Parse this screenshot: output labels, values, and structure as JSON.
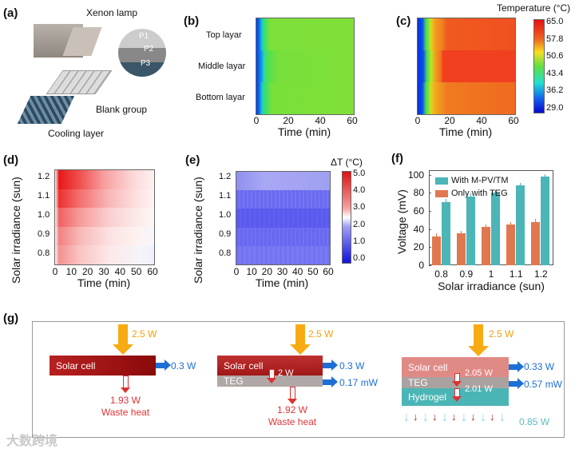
{
  "panel_a": {
    "label": "(a)",
    "xenon": "Xenon  lamp",
    "blank": "Blank group",
    "cooling": "Cooling layer",
    "points": [
      "P1",
      "P2",
      "P3"
    ]
  },
  "panel_b": {
    "label": "(b)",
    "rows": [
      "Top layar",
      "Middle layar",
      "Bottom layar"
    ],
    "xticks": [
      "0",
      "20",
      "40",
      "60"
    ],
    "xlabel": "Time (min)"
  },
  "panel_c": {
    "label": "(c)",
    "xticks": [
      "0",
      "20",
      "40",
      "60"
    ],
    "xlabel": "Time (min)",
    "cbar_title": "Temperature (°C)",
    "cbar_ticks": [
      "65.0",
      "57.8",
      "50.6",
      "43.4",
      "36.2",
      "29.0"
    ]
  },
  "panel_d": {
    "label": "(d)",
    "ylabel": "Solar irradiance (sun)",
    "yticks": [
      "1.2",
      "1.1",
      "1.0",
      "0.9",
      "0.8"
    ],
    "xticks": [
      "0",
      "10",
      "20",
      "30",
      "40",
      "50",
      "60"
    ],
    "xlabel": "Time (min)"
  },
  "panel_e": {
    "label": "(e)",
    "ylabel": "Solar irradiance (sun)",
    "yticks": [
      "1.2",
      "1.1",
      "1.0",
      "0.9",
      "0.8"
    ],
    "xticks": [
      "0",
      "10",
      "20",
      "30",
      "40",
      "50",
      "60"
    ],
    "xlabel": "Time (min)",
    "cbar_title": "ΔT (°C)",
    "cbar_ticks": [
      "5.0",
      "4.0",
      "3.0",
      "2.0",
      "1.0",
      "0.0"
    ]
  },
  "chart_data": {
    "type": "bar",
    "panel": "(f)",
    "categories": [
      "0.8",
      "0.9",
      "1",
      "1.1",
      "1.2"
    ],
    "series": [
      {
        "name": "Only with TEG",
        "color": "#e0784f",
        "values": [
          32,
          35,
          42,
          45,
          48
        ]
      },
      {
        "name": "With M-PV/TM",
        "color": "#4bb5b8",
        "values": [
          70,
          76,
          80,
          88,
          98
        ]
      }
    ],
    "xlabel": "Solar irradiance (sun)",
    "ylabel": "Voltage (mV)",
    "ylim": [
      0,
      105
    ],
    "yticks": [
      "0",
      "20",
      "40",
      "60",
      "80",
      "100"
    ],
    "legend": "top-left"
  },
  "panel_g": {
    "label": "(g)",
    "g1": {
      "input": "2.5 W",
      "cell": "Solar cell",
      "out": "0.3 W",
      "waste": "1.93 W",
      "waste_label": "Waste heat"
    },
    "g2": {
      "input": "2.5 W",
      "cell": "Solar cell",
      "teg": "TEG",
      "mid": "2 W",
      "out1": "0.3 W",
      "out2": "0.17 mW",
      "waste": "1.92 W",
      "waste_label": "Waste heat"
    },
    "g3": {
      "input": "2.5 W",
      "cell": "Solar cell",
      "teg": "TEG",
      "gel": "Hydrogel",
      "mid1": "2.05 W",
      "mid2": "2.01 W",
      "out1": "0.33 W",
      "out2": "0.57 mW",
      "evap": "0.85 W"
    }
  },
  "watermark": "大数跨境"
}
